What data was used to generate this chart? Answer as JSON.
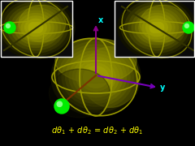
{
  "bg_color": "#000000",
  "fig_width": 2.4,
  "fig_height": 1.8,
  "dpi": 100,
  "sphere_colors": [
    "#111100",
    "#222200",
    "#333300",
    "#444400",
    "#555500",
    "#666600",
    "#777700",
    "#888800",
    "#999900",
    "#aaaa00"
  ],
  "green_ball": "#00ee00",
  "green_ball_hi": "#88ff88",
  "axis_up_color": "#880088",
  "axis_y_color": "#7700bb",
  "axis_z_color": "#7a3300",
  "axis_label_color": "#00ffff",
  "text_color": "#ffff00",
  "text_fs": 7,
  "inset_bg": "#0a0a0a",
  "inset_border": "#ffffff",
  "gc_color": "#999900"
}
